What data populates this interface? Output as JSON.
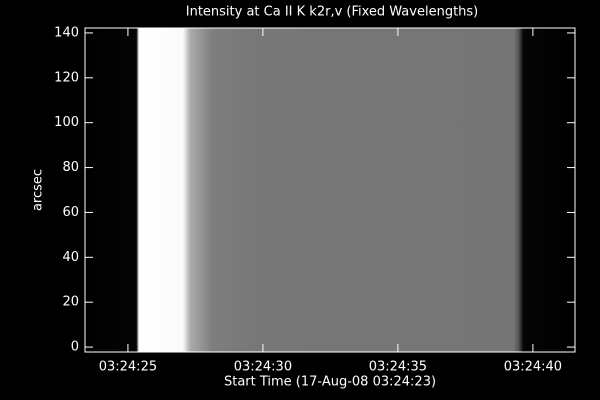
{
  "chart_data": {
    "type": "image",
    "title": "Intensity at Ca II K k2r,v (Fixed Wavelengths)",
    "x_label": "Start Time (17-Aug-08 03:24:23)",
    "y_label": "arcsec",
    "xlim": [
      0.41,
      18.56
    ],
    "xticks": [
      {
        "value": 2,
        "label": "03:24:25"
      },
      {
        "value": 7,
        "label": "03:24:30"
      },
      {
        "value": 12,
        "label": "03:24:35"
      },
      {
        "value": 17,
        "label": "03:24:40"
      }
    ],
    "ylim": [
      -2.2,
      142.2
    ],
    "yticks": [
      0,
      20,
      40,
      60,
      80,
      100,
      120,
      140
    ]
  }
}
